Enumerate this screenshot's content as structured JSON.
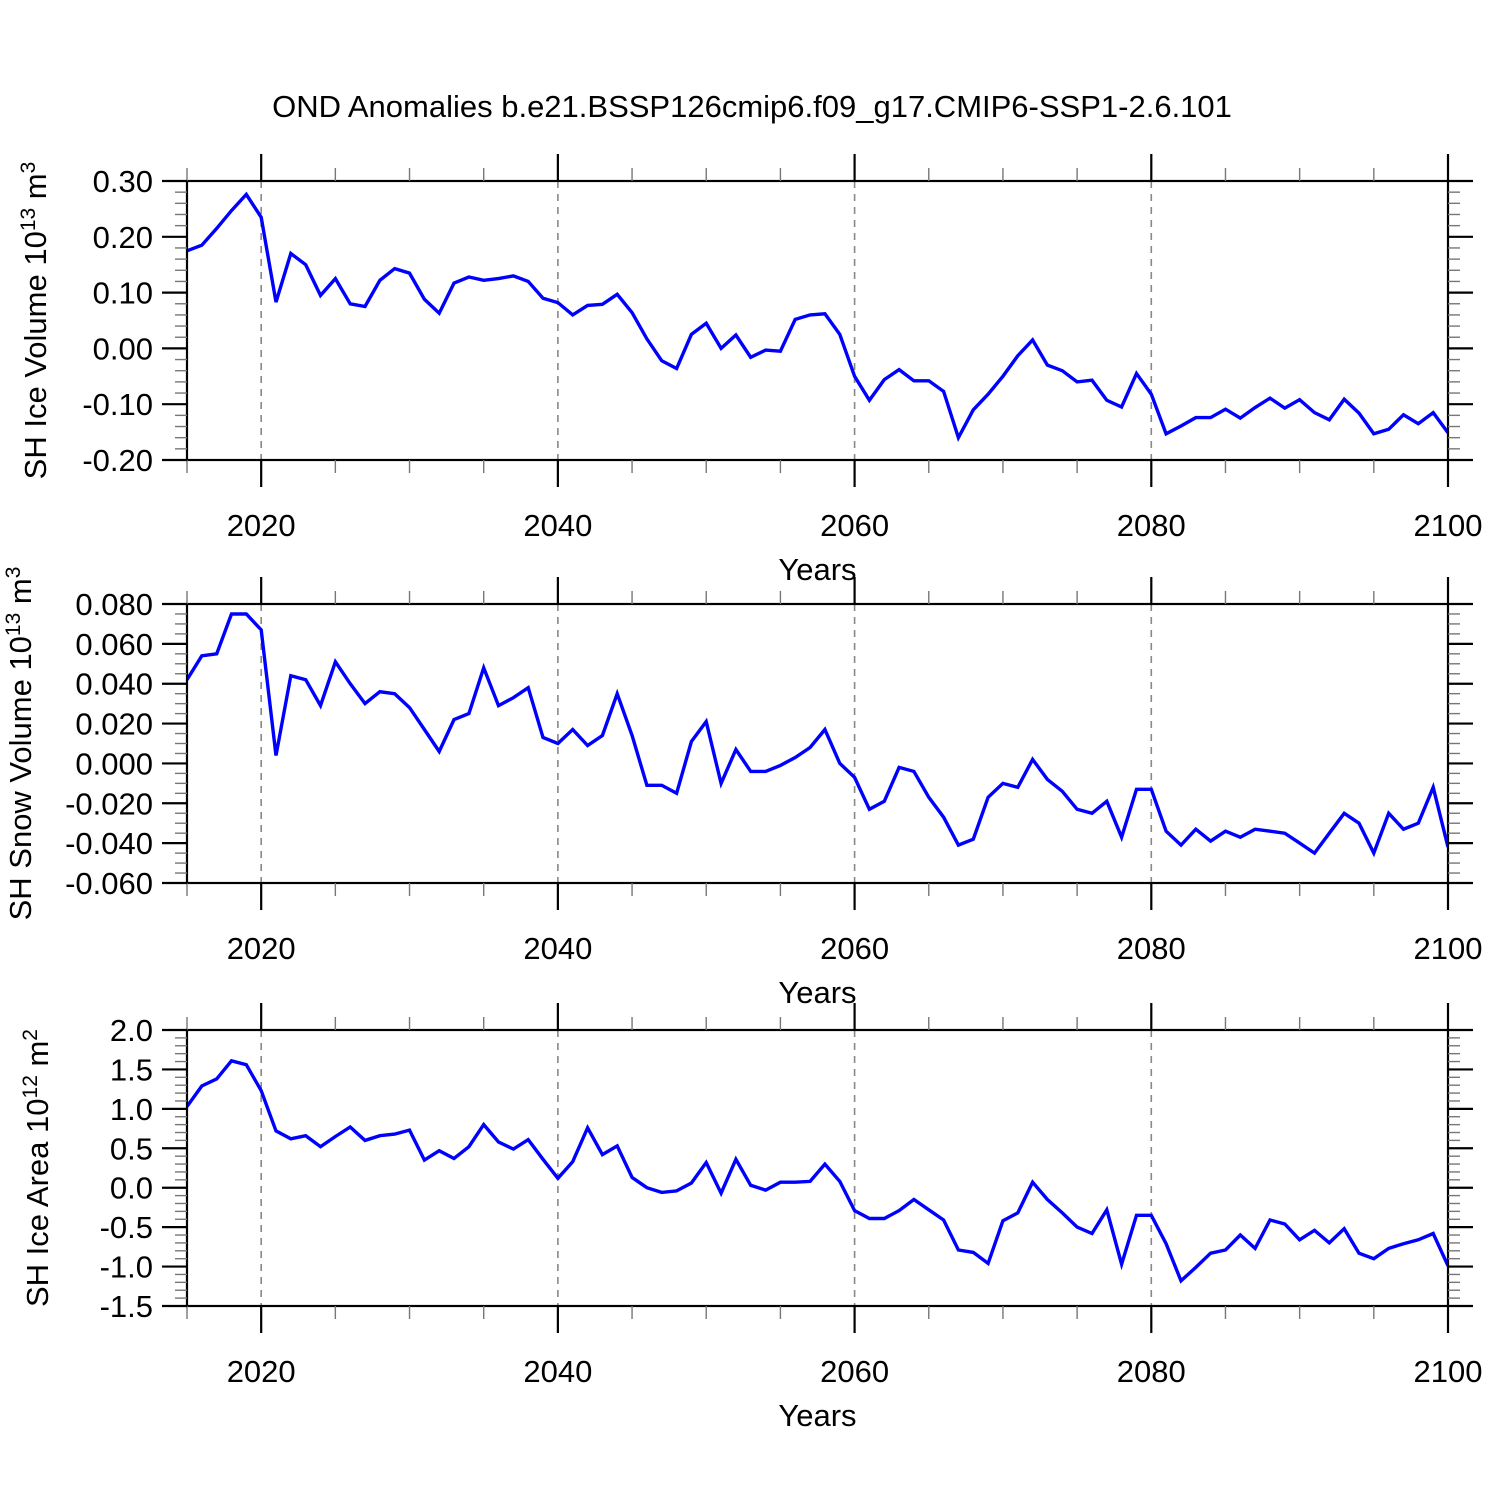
{
  "title": "OND Anomalies b.e21.BSSP126cmip6.f09_g17.CMIP6-SSP1-2.6.101",
  "xlabel": "Years",
  "colors": {
    "line": "#0000ff",
    "grid": "#888888",
    "axis": "#000000"
  },
  "x_range": [
    2015,
    2100
  ],
  "x_major_ticks": [
    2020,
    2040,
    2060,
    2080,
    2100
  ],
  "x_minor_step": 5,
  "grid_years": [
    2020,
    2040,
    2060,
    2080
  ],
  "years": [
    2015,
    2016,
    2017,
    2018,
    2019,
    2020,
    2021,
    2022,
    2023,
    2024,
    2025,
    2026,
    2027,
    2028,
    2029,
    2030,
    2031,
    2032,
    2033,
    2034,
    2035,
    2036,
    2037,
    2038,
    2039,
    2040,
    2041,
    2042,
    2043,
    2044,
    2045,
    2046,
    2047,
    2048,
    2049,
    2050,
    2051,
    2052,
    2053,
    2054,
    2055,
    2056,
    2057,
    2058,
    2059,
    2060,
    2061,
    2062,
    2063,
    2064,
    2065,
    2066,
    2067,
    2068,
    2069,
    2070,
    2071,
    2072,
    2073,
    2074,
    2075,
    2076,
    2077,
    2078,
    2079,
    2080,
    2081,
    2082,
    2083,
    2084,
    2085,
    2086,
    2087,
    2088,
    2089,
    2090,
    2091,
    2092,
    2093,
    2094,
    2095,
    2096,
    2097,
    2098,
    2099,
    2100
  ],
  "chart_data": [
    {
      "type": "line",
      "series_name": "SH Ice Volume",
      "ylabel": [
        {
          "text": "SH Ice Volume 10",
          "sup": false
        },
        {
          "text": "13",
          "sup": true
        },
        {
          "text": " m",
          "sup": false
        },
        {
          "text": "3",
          "sup": true
        }
      ],
      "ylim": [
        -0.2,
        0.3
      ],
      "y_major_step": 0.1,
      "y_minor_step": 0.02,
      "yticks": [
        {
          "v": 0.3,
          "label": "0.30"
        },
        {
          "v": 0.2,
          "label": "0.20"
        },
        {
          "v": 0.1,
          "label": "0.10"
        },
        {
          "v": 0.0,
          "label": "0.00"
        },
        {
          "v": -0.1,
          "label": "-0.10"
        },
        {
          "v": -0.2,
          "label": "-0.20"
        }
      ],
      "values": [
        0.175,
        0.185,
        0.215,
        0.247,
        0.276,
        0.235,
        0.083,
        0.17,
        0.15,
        0.095,
        0.125,
        0.08,
        0.075,
        0.122,
        0.143,
        0.135,
        0.088,
        0.063,
        0.117,
        0.128,
        0.122,
        0.125,
        0.13,
        0.12,
        0.09,
        0.082,
        0.06,
        0.077,
        0.079,
        0.097,
        0.064,
        0.017,
        -0.022,
        -0.036,
        0.025,
        0.045,
        0.0,
        0.024,
        -0.016,
        -0.003,
        -0.005,
        0.052,
        0.06,
        0.062,
        0.025,
        -0.05,
        -0.093,
        -0.056,
        -0.038,
        -0.058,
        -0.058,
        -0.077,
        -0.16,
        -0.11,
        -0.082,
        -0.05,
        -0.013,
        0.015,
        -0.03,
        -0.04,
        -0.06,
        -0.057,
        -0.093,
        -0.105,
        -0.045,
        -0.082,
        -0.153,
        -0.139,
        -0.124,
        -0.124,
        -0.109,
        -0.125,
        -0.106,
        -0.089,
        -0.107,
        -0.092,
        -0.115,
        -0.128,
        -0.091,
        -0.116,
        -0.153,
        -0.145,
        -0.119,
        -0.135,
        -0.115,
        -0.151
      ]
    },
    {
      "type": "line",
      "series_name": "SH Snow Volume",
      "ylabel": [
        {
          "text": "SH Snow Volume 10",
          "sup": false
        },
        {
          "text": "13",
          "sup": true
        },
        {
          "text": " m",
          "sup": false
        },
        {
          "text": "3",
          "sup": true
        }
      ],
      "ylim": [
        -0.06,
        0.08
      ],
      "y_major_step": 0.02,
      "y_minor_step": 0.005,
      "yticks": [
        {
          "v": 0.08,
          "label": "0.080"
        },
        {
          "v": 0.06,
          "label": "0.060"
        },
        {
          "v": 0.04,
          "label": "0.040"
        },
        {
          "v": 0.02,
          "label": "0.020"
        },
        {
          "v": 0.0,
          "label": "0.000"
        },
        {
          "v": -0.02,
          "label": "-0.020"
        },
        {
          "v": -0.04,
          "label": "-0.040"
        },
        {
          "v": -0.06,
          "label": "-0.060"
        }
      ],
      "values": [
        0.042,
        0.054,
        0.055,
        0.075,
        0.075,
        0.067,
        0.004,
        0.044,
        0.042,
        0.029,
        0.051,
        0.04,
        0.03,
        0.036,
        0.035,
        0.028,
        0.017,
        0.006,
        0.022,
        0.025,
        0.048,
        0.029,
        0.033,
        0.038,
        0.013,
        0.01,
        0.017,
        0.009,
        0.014,
        0.035,
        0.014,
        -0.011,
        -0.011,
        -0.015,
        0.011,
        0.021,
        -0.01,
        0.007,
        -0.004,
        -0.004,
        -0.001,
        0.003,
        0.008,
        0.017,
        0.0,
        -0.007,
        -0.023,
        -0.019,
        -0.002,
        -0.004,
        -0.017,
        -0.027,
        -0.041,
        -0.038,
        -0.017,
        -0.01,
        -0.012,
        0.002,
        -0.008,
        -0.014,
        -0.023,
        -0.025,
        -0.019,
        -0.037,
        -0.013,
        -0.013,
        -0.034,
        -0.041,
        -0.033,
        -0.039,
        -0.034,
        -0.037,
        -0.033,
        -0.034,
        -0.035,
        -0.04,
        -0.045,
        -0.035,
        -0.025,
        -0.03,
        -0.045,
        -0.025,
        -0.033,
        -0.03,
        -0.012,
        -0.042
      ]
    },
    {
      "type": "line",
      "series_name": "SH Ice Area",
      "ylabel": [
        {
          "text": "SH Ice Area 10",
          "sup": false
        },
        {
          "text": "12",
          "sup": true
        },
        {
          "text": " m",
          "sup": false
        },
        {
          "text": "2",
          "sup": true
        }
      ],
      "ylim": [
        -1.5,
        2.0
      ],
      "y_major_step": 0.5,
      "y_minor_step": 0.1,
      "yticks": [
        {
          "v": 2.0,
          "label": "2.0"
        },
        {
          "v": 1.5,
          "label": "1.5"
        },
        {
          "v": 1.0,
          "label": "1.0"
        },
        {
          "v": 0.5,
          "label": "0.5"
        },
        {
          "v": 0.0,
          "label": "0.0"
        },
        {
          "v": -0.5,
          "label": "-0.5"
        },
        {
          "v": -1.0,
          "label": "-1.0"
        },
        {
          "v": -1.5,
          "label": "-1.5"
        }
      ],
      "values": [
        1.03,
        1.29,
        1.38,
        1.61,
        1.56,
        1.23,
        0.72,
        0.62,
        0.66,
        0.52,
        0.65,
        0.77,
        0.6,
        0.66,
        0.68,
        0.73,
        0.35,
        0.47,
        0.37,
        0.52,
        0.8,
        0.58,
        0.49,
        0.61,
        0.36,
        0.12,
        0.33,
        0.76,
        0.42,
        0.53,
        0.13,
        0.0,
        -0.06,
        -0.04,
        0.06,
        0.32,
        -0.07,
        0.36,
        0.03,
        -0.03,
        0.07,
        0.07,
        0.08,
        0.3,
        0.08,
        -0.29,
        -0.39,
        -0.39,
        -0.29,
        -0.15,
        -0.28,
        -0.41,
        -0.79,
        -0.82,
        -0.96,
        -0.42,
        -0.32,
        0.07,
        -0.15,
        -0.32,
        -0.5,
        -0.58,
        -0.28,
        -0.97,
        -0.35,
        -0.35,
        -0.71,
        -1.18,
        -1.01,
        -0.83,
        -0.79,
        -0.6,
        -0.77,
        -0.41,
        -0.46,
        -0.66,
        -0.54,
        -0.7,
        -0.52,
        -0.83,
        -0.9,
        -0.77,
        -0.71,
        -0.66,
        -0.58,
        -0.99
      ]
    }
  ]
}
